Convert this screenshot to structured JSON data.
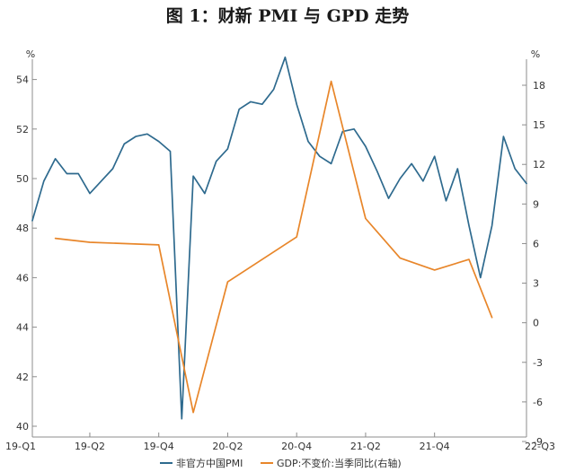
{
  "title": "图 1：财新 PMI 与 GPD 走势",
  "chart_data": {
    "type": "line",
    "grid": false,
    "legend_position": "bottom",
    "categories": [
      "19-Q1",
      "19-Q2",
      "19-Q4",
      "20-Q2",
      "20-Q4",
      "21-Q2",
      "21-Q4",
      "22-Q3"
    ],
    "y_left": {
      "unit": "%",
      "range": [
        40,
        55
      ],
      "ticks": [
        40,
        42,
        44,
        46,
        48,
        50,
        52,
        54
      ]
    },
    "y_right": {
      "unit": "%",
      "range": [
        -9,
        18.0
      ],
      "ticks": [
        -9,
        -6,
        -3,
        0,
        3,
        6,
        9,
        12,
        15,
        18
      ]
    },
    "x_range": [
      0,
      43
    ],
    "x_tick_positions": [
      0,
      5,
      11,
      17,
      23,
      29,
      35,
      43
    ],
    "series": [
      {
        "name": "非官方中国PMI",
        "axis": "left",
        "color": "#2e6a8e",
        "x": [
          0,
          1,
          2,
          3,
          4,
          5,
          6,
          7,
          8,
          9,
          10,
          11,
          12,
          13,
          14,
          15,
          16,
          17,
          18,
          19,
          20,
          21,
          22,
          23,
          24,
          25,
          26,
          27,
          28,
          29,
          30,
          31,
          32,
          33,
          34,
          35,
          36,
          37,
          38,
          39,
          40,
          41,
          42,
          43
        ],
        "values": [
          48.3,
          49.9,
          50.8,
          50.2,
          50.2,
          49.4,
          49.9,
          50.4,
          51.4,
          51.7,
          51.8,
          51.5,
          51.1,
          40.3,
          50.1,
          49.4,
          50.7,
          51.2,
          52.8,
          53.1,
          53.0,
          53.6,
          54.9,
          53.0,
          51.5,
          50.9,
          50.6,
          51.9,
          52.0,
          51.3,
          50.3,
          49.2,
          50.0,
          50.6,
          49.9,
          50.9,
          49.1,
          50.4,
          48.1,
          46.0,
          48.1,
          51.7,
          50.4,
          49.8
        ]
      },
      {
        "name": "GDP:不变价:当季同比(右轴)",
        "axis": "right",
        "color": "#e8862a",
        "x": [
          2,
          5,
          11,
          14,
          17,
          23,
          26,
          29,
          32,
          35,
          38,
          40
        ],
        "values": [
          6.4,
          6.1,
          5.9,
          -6.8,
          3.1,
          6.5,
          18.3,
          7.9,
          4.9,
          4.0,
          4.8,
          0.4
        ]
      }
    ]
  }
}
